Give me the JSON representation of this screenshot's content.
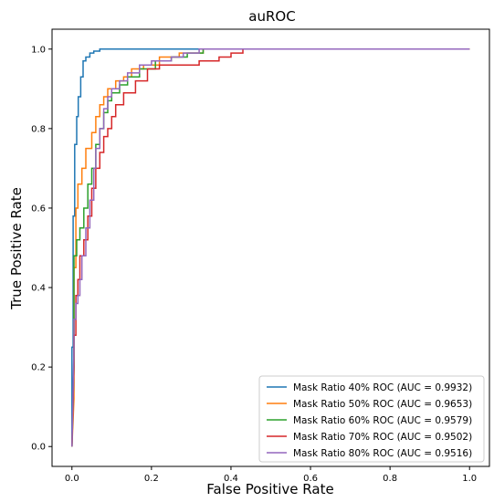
{
  "chart_data": {
    "type": "line",
    "title": "auROC",
    "xlabel": "False Positive Rate",
    "ylabel": "True Positive Rate",
    "xlim": [
      -0.05,
      1.05
    ],
    "ylim": [
      -0.05,
      1.05
    ],
    "xticks": [
      "0.0",
      "0.2",
      "0.4",
      "0.6",
      "0.8",
      "1.0"
    ],
    "yticks": [
      "0.0",
      "0.2",
      "0.4",
      "0.6",
      "0.8",
      "1.0"
    ],
    "xtick_values": [
      0.0,
      0.2,
      0.4,
      0.6,
      0.8,
      1.0
    ],
    "ytick_values": [
      0.0,
      0.2,
      0.4,
      0.6,
      0.8,
      1.0
    ],
    "grid": false,
    "legend_position": "bottom-right",
    "series": [
      {
        "name": "Mask Ratio 40% ROC (AUC = 0.9932)",
        "color": "#1f77b4",
        "points": [
          [
            0,
            0
          ],
          [
            0,
            0.25
          ],
          [
            0.003,
            0.25
          ],
          [
            0.003,
            0.58
          ],
          [
            0.007,
            0.58
          ],
          [
            0.007,
            0.76
          ],
          [
            0.012,
            0.76
          ],
          [
            0.012,
            0.83
          ],
          [
            0.016,
            0.83
          ],
          [
            0.016,
            0.88
          ],
          [
            0.022,
            0.88
          ],
          [
            0.022,
            0.93
          ],
          [
            0.028,
            0.93
          ],
          [
            0.028,
            0.97
          ],
          [
            0.035,
            0.97
          ],
          [
            0.035,
            0.98
          ],
          [
            0.045,
            0.98
          ],
          [
            0.045,
            0.99
          ],
          [
            0.055,
            0.99
          ],
          [
            0.055,
            0.995
          ],
          [
            0.07,
            0.995
          ],
          [
            0.07,
            1.0
          ],
          [
            1.0,
            1.0
          ]
        ]
      },
      {
        "name": "Mask Ratio 50% ROC (AUC = 0.9653)",
        "color": "#ff7f0e",
        "points": [
          [
            0,
            0
          ],
          [
            0.005,
            0.12
          ],
          [
            0.005,
            0.45
          ],
          [
            0.01,
            0.45
          ],
          [
            0.01,
            0.6
          ],
          [
            0.015,
            0.6
          ],
          [
            0.015,
            0.66
          ],
          [
            0.025,
            0.66
          ],
          [
            0.025,
            0.7
          ],
          [
            0.035,
            0.7
          ],
          [
            0.035,
            0.75
          ],
          [
            0.05,
            0.75
          ],
          [
            0.05,
            0.79
          ],
          [
            0.06,
            0.79
          ],
          [
            0.06,
            0.83
          ],
          [
            0.07,
            0.83
          ],
          [
            0.07,
            0.86
          ],
          [
            0.08,
            0.86
          ],
          [
            0.08,
            0.88
          ],
          [
            0.09,
            0.88
          ],
          [
            0.09,
            0.9
          ],
          [
            0.11,
            0.9
          ],
          [
            0.11,
            0.92
          ],
          [
            0.13,
            0.92
          ],
          [
            0.13,
            0.93
          ],
          [
            0.15,
            0.93
          ],
          [
            0.15,
            0.95
          ],
          [
            0.18,
            0.95
          ],
          [
            0.18,
            0.96
          ],
          [
            0.22,
            0.96
          ],
          [
            0.22,
            0.98
          ],
          [
            0.27,
            0.98
          ],
          [
            0.27,
            0.99
          ],
          [
            0.33,
            0.99
          ],
          [
            0.33,
            1.0
          ],
          [
            1.0,
            1.0
          ]
        ]
      },
      {
        "name": "Mask Ratio 60% ROC (AUC = 0.9579)",
        "color": "#2ca02c",
        "points": [
          [
            0,
            0
          ],
          [
            0.005,
            0.2
          ],
          [
            0.005,
            0.48
          ],
          [
            0.012,
            0.48
          ],
          [
            0.012,
            0.52
          ],
          [
            0.02,
            0.52
          ],
          [
            0.02,
            0.55
          ],
          [
            0.03,
            0.55
          ],
          [
            0.03,
            0.6
          ],
          [
            0.04,
            0.6
          ],
          [
            0.04,
            0.66
          ],
          [
            0.05,
            0.66
          ],
          [
            0.05,
            0.7
          ],
          [
            0.06,
            0.7
          ],
          [
            0.06,
            0.76
          ],
          [
            0.07,
            0.76
          ],
          [
            0.07,
            0.8
          ],
          [
            0.08,
            0.8
          ],
          [
            0.08,
            0.84
          ],
          [
            0.09,
            0.84
          ],
          [
            0.09,
            0.87
          ],
          [
            0.1,
            0.87
          ],
          [
            0.1,
            0.89
          ],
          [
            0.12,
            0.89
          ],
          [
            0.12,
            0.91
          ],
          [
            0.14,
            0.91
          ],
          [
            0.14,
            0.93
          ],
          [
            0.17,
            0.93
          ],
          [
            0.17,
            0.95
          ],
          [
            0.21,
            0.95
          ],
          [
            0.21,
            0.97
          ],
          [
            0.25,
            0.97
          ],
          [
            0.25,
            0.98
          ],
          [
            0.29,
            0.98
          ],
          [
            0.29,
            0.99
          ],
          [
            0.33,
            0.99
          ],
          [
            0.33,
            1.0
          ],
          [
            1.0,
            1.0
          ]
        ]
      },
      {
        "name": "Mask Ratio 70% ROC (AUC = 0.9502)",
        "color": "#d62728",
        "points": [
          [
            0,
            0
          ],
          [
            0.005,
            0.2
          ],
          [
            0.005,
            0.28
          ],
          [
            0.01,
            0.28
          ],
          [
            0.01,
            0.38
          ],
          [
            0.015,
            0.38
          ],
          [
            0.015,
            0.42
          ],
          [
            0.02,
            0.42
          ],
          [
            0.02,
            0.48
          ],
          [
            0.03,
            0.48
          ],
          [
            0.03,
            0.52
          ],
          [
            0.04,
            0.52
          ],
          [
            0.04,
            0.58
          ],
          [
            0.05,
            0.58
          ],
          [
            0.05,
            0.65
          ],
          [
            0.06,
            0.65
          ],
          [
            0.06,
            0.7
          ],
          [
            0.07,
            0.7
          ],
          [
            0.07,
            0.74
          ],
          [
            0.08,
            0.74
          ],
          [
            0.08,
            0.78
          ],
          [
            0.09,
            0.78
          ],
          [
            0.09,
            0.8
          ],
          [
            0.1,
            0.8
          ],
          [
            0.1,
            0.83
          ],
          [
            0.11,
            0.83
          ],
          [
            0.11,
            0.86
          ],
          [
            0.13,
            0.86
          ],
          [
            0.13,
            0.89
          ],
          [
            0.16,
            0.89
          ],
          [
            0.16,
            0.92
          ],
          [
            0.19,
            0.92
          ],
          [
            0.19,
            0.95
          ],
          [
            0.22,
            0.95
          ],
          [
            0.22,
            0.96
          ],
          [
            0.32,
            0.96
          ],
          [
            0.32,
            0.97
          ],
          [
            0.37,
            0.97
          ],
          [
            0.37,
            0.98
          ],
          [
            0.4,
            0.98
          ],
          [
            0.4,
            0.99
          ],
          [
            0.43,
            0.99
          ],
          [
            0.43,
            1.0
          ],
          [
            1.0,
            1.0
          ]
        ]
      },
      {
        "name": "Mask Ratio 80% ROC (AUC = 0.9516)",
        "color": "#9467bd",
        "points": [
          [
            0,
            0
          ],
          [
            0.005,
            0.25
          ],
          [
            0.005,
            0.32
          ],
          [
            0.01,
            0.32
          ],
          [
            0.01,
            0.36
          ],
          [
            0.015,
            0.36
          ],
          [
            0.015,
            0.38
          ],
          [
            0.02,
            0.38
          ],
          [
            0.02,
            0.42
          ],
          [
            0.025,
            0.42
          ],
          [
            0.025,
            0.48
          ],
          [
            0.035,
            0.48
          ],
          [
            0.035,
            0.55
          ],
          [
            0.045,
            0.55
          ],
          [
            0.045,
            0.62
          ],
          [
            0.055,
            0.62
          ],
          [
            0.055,
            0.7
          ],
          [
            0.06,
            0.7
          ],
          [
            0.06,
            0.75
          ],
          [
            0.07,
            0.75
          ],
          [
            0.07,
            0.8
          ],
          [
            0.08,
            0.8
          ],
          [
            0.08,
            0.85
          ],
          [
            0.09,
            0.85
          ],
          [
            0.09,
            0.88
          ],
          [
            0.1,
            0.88
          ],
          [
            0.1,
            0.9
          ],
          [
            0.12,
            0.9
          ],
          [
            0.12,
            0.92
          ],
          [
            0.14,
            0.92
          ],
          [
            0.14,
            0.94
          ],
          [
            0.17,
            0.94
          ],
          [
            0.17,
            0.96
          ],
          [
            0.2,
            0.96
          ],
          [
            0.2,
            0.97
          ],
          [
            0.25,
            0.97
          ],
          [
            0.25,
            0.98
          ],
          [
            0.28,
            0.98
          ],
          [
            0.28,
            0.99
          ],
          [
            0.32,
            0.99
          ],
          [
            0.32,
            1.0
          ],
          [
            1.0,
            1.0
          ]
        ]
      }
    ]
  }
}
